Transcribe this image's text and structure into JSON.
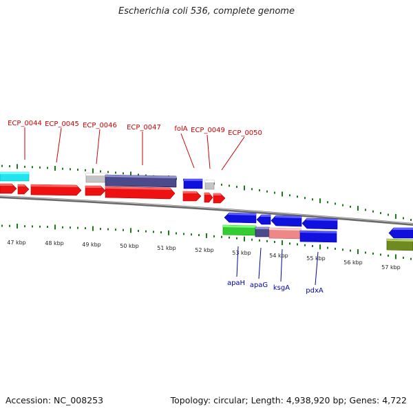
{
  "title": "Escherichia coli 536, complete genome",
  "footer": {
    "accession": "Accession: NC_008253",
    "summary": "Topology: circular; Length: 4,938,920 bp; Genes: 4,722"
  },
  "scale_labels": [
    "47 kbp",
    "48 kbp",
    "49 kbp",
    "50 kbp",
    "51 kbp",
    "52 kbp",
    "53 kbp",
    "54 kbp",
    "55 kbp",
    "56 kbp",
    "57 kbp"
  ],
  "top_gene_labels": [
    "ECP_0044",
    "ECP_0045",
    "ECP_0046",
    "ECP_0047",
    "folA",
    "ECP_0049",
    "ECP_0050"
  ],
  "bottom_gene_labels": [
    "apaH",
    "apaG",
    "ksgA",
    "pdxA"
  ],
  "colors": {
    "forward_cds": "#ee1111",
    "reverse_cds": "#1111dd",
    "top_label": "#cc0000",
    "bottom_label": "#0000aa",
    "tick": "#1a7a1a",
    "backbone": "#808080",
    "cyan_feature": "#22e4ee",
    "purple_feature": "#4b4a8a",
    "grey_feature": "#c4c4c4",
    "green_feature": "#33cc33",
    "pink_feature": "#ee8888",
    "olive_feature": "#6f8a1e"
  }
}
